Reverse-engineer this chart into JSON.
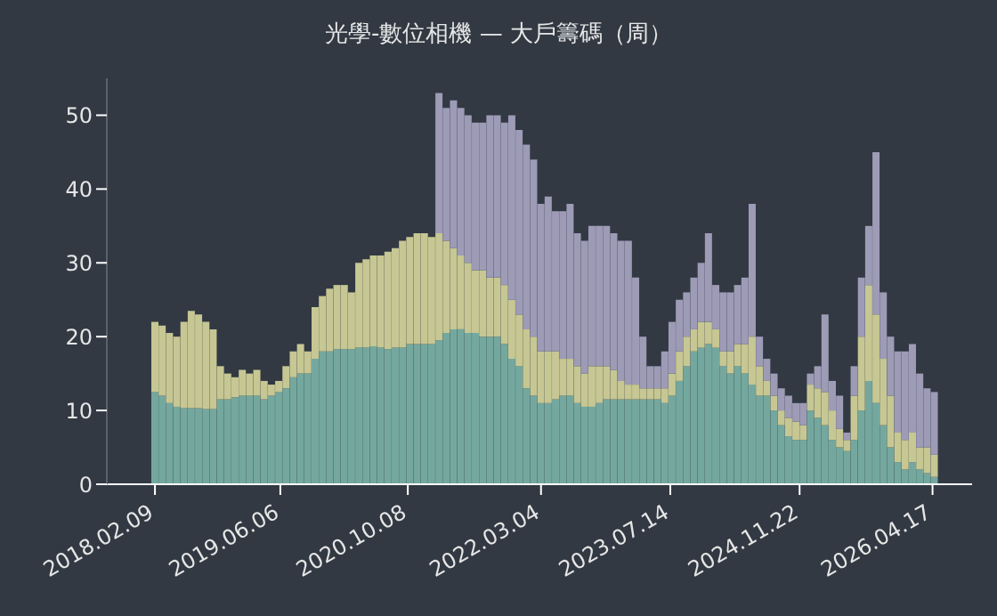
{
  "chart_data": {
    "type": "bar",
    "title": "光學-數位相機 — 大戶籌碼（周）",
    "stacked": true,
    "x": [
      "2018-02-09",
      "2018-03-09",
      "2018-04-06",
      "2018-05-04",
      "2018-06-01",
      "2018-06-29",
      "2018-07-27",
      "2018-08-24",
      "2018-09-21",
      "2018-10-19",
      "2018-11-16",
      "2018-12-14",
      "2019-01-11",
      "2019-02-08",
      "2019-03-08",
      "2019-04-05",
      "2019-05-03",
      "2019-05-31",
      "2019-06-28",
      "2019-07-26",
      "2019-08-23",
      "2019-09-20",
      "2019-10-18",
      "2019-11-15",
      "2019-12-13",
      "2020-01-10",
      "2020-02-07",
      "2020-03-06",
      "2020-04-03",
      "2020-05-01",
      "2020-05-29",
      "2020-06-26",
      "2020-07-24",
      "2020-08-21",
      "2020-09-18",
      "2020-10-16",
      "2020-11-13",
      "2020-12-11",
      "2021-01-08",
      "2021-02-05",
      "2021-03-05",
      "2021-04-02",
      "2021-04-30",
      "2021-05-28",
      "2021-06-25",
      "2021-07-23",
      "2021-08-20",
      "2021-09-17",
      "2021-10-15",
      "2021-11-12",
      "2021-12-10",
      "2022-01-07",
      "2022-02-04",
      "2022-03-04",
      "2022-04-01",
      "2022-04-29",
      "2022-05-27",
      "2022-06-24",
      "2022-07-22",
      "2022-08-19",
      "2022-09-16",
      "2022-10-14",
      "2022-11-11",
      "2022-12-09",
      "2023-01-06",
      "2023-02-03",
      "2023-03-03",
      "2023-03-31",
      "2023-04-28",
      "2023-05-26",
      "2023-06-23",
      "2023-07-21",
      "2023-08-18",
      "2023-09-15",
      "2023-10-13",
      "2023-11-10",
      "2023-12-08",
      "2024-01-05",
      "2024-02-02",
      "2024-03-01",
      "2024-03-29",
      "2024-04-26",
      "2024-05-24",
      "2024-06-21",
      "2024-07-19",
      "2024-08-16",
      "2024-09-13",
      "2024-10-11",
      "2024-11-08",
      "2024-12-06",
      "2025-01-03",
      "2025-01-31",
      "2025-02-28",
      "2025-03-28",
      "2025-04-25",
      "2025-05-23",
      "2025-06-20",
      "2025-07-18",
      "2025-08-15",
      "2025-09-12",
      "2025-10-10",
      "2025-11-07",
      "2025-12-05",
      "2026-01-02",
      "2026-01-30",
      "2026-02-27",
      "2026-03-27",
      "2026-04-24"
    ],
    "series": [
      {
        "color": "#74a89f",
        "values": [
          12.5,
          12,
          11,
          10.5,
          10.3,
          10.3,
          10.3,
          10.2,
          10.2,
          11.5,
          11.5,
          11.8,
          12,
          12,
          12,
          11.5,
          12,
          12.5,
          13,
          14.5,
          15,
          15,
          17,
          18,
          18,
          18.3,
          18.3,
          18.3,
          18.5,
          18.5,
          18.7,
          18.5,
          18.3,
          18.5,
          18.5,
          19,
          19,
          19,
          19,
          19.5,
          20.5,
          21,
          21,
          20.5,
          20.5,
          20,
          20,
          20,
          19,
          17,
          16,
          13,
          12,
          11,
          11,
          11.5,
          12,
          12,
          11,
          10.5,
          10.5,
          11,
          11.5,
          11.5,
          11.5,
          11.5,
          11.5,
          11.5,
          11.5,
          11.5,
          11,
          12,
          14,
          16,
          18,
          18.5,
          19,
          18.5,
          16,
          15,
          16,
          15,
          13.5,
          12,
          12,
          10,
          8,
          6.5,
          6,
          6,
          10,
          9,
          8,
          6,
          5,
          4.5,
          6,
          10,
          14,
          11,
          8,
          5,
          3,
          2,
          3,
          2,
          1.5,
          1
        ]
      },
      {
        "color": "#c6c793",
        "values": [
          9.5,
          9.5,
          9.5,
          9.5,
          11.7,
          13.2,
          12.7,
          11.8,
          10.8,
          4.5,
          3.5,
          2.7,
          3.5,
          3,
          3.5,
          2.5,
          1.5,
          1.5,
          3,
          3.5,
          4,
          3,
          7,
          7.5,
          8.5,
          8.7,
          8.7,
          7.7,
          11.5,
          12,
          12.3,
          12.5,
          13.2,
          13.5,
          14.5,
          14.5,
          15,
          15,
          14.5,
          14.5,
          12.5,
          11,
          10,
          9.5,
          8.5,
          9,
          8,
          8,
          8,
          8,
          7,
          8,
          8,
          7,
          7,
          6.5,
          5,
          5,
          5,
          4.5,
          5.5,
          5,
          4.5,
          4,
          2.5,
          2,
          2,
          1.5,
          1.5,
          1.5,
          2,
          3,
          4,
          4,
          3,
          3.5,
          3,
          2.5,
          2,
          3,
          3,
          4,
          6.5,
          4,
          2,
          2,
          2,
          2.5,
          2.5,
          2,
          3.5,
          4,
          4.5,
          4,
          2.5,
          1.5,
          6,
          10,
          13,
          12,
          9,
          7,
          4,
          4,
          4,
          3,
          3.5,
          3
        ]
      },
      {
        "color": "#9d9bb6",
        "values": [
          null,
          null,
          null,
          null,
          null,
          null,
          null,
          null,
          null,
          null,
          null,
          null,
          null,
          null,
          null,
          null,
          null,
          null,
          null,
          null,
          null,
          null,
          null,
          null,
          null,
          null,
          null,
          null,
          null,
          null,
          null,
          null,
          null,
          null,
          null,
          null,
          null,
          null,
          null,
          19,
          18,
          20,
          20,
          20,
          20,
          20,
          22,
          22,
          22,
          25,
          25,
          25,
          24,
          20,
          21,
          19,
          20,
          21,
          18,
          18,
          19,
          19,
          19,
          18.5,
          19,
          19.5,
          14.5,
          7,
          3,
          3,
          5,
          7,
          7,
          6,
          7,
          8,
          12,
          6,
          8,
          8,
          8,
          9,
          18,
          4,
          3,
          3,
          3,
          3,
          2.5,
          3,
          1.5,
          3,
          10.5,
          4,
          4.5,
          1,
          4,
          8,
          8,
          22,
          9,
          8,
          11,
          12,
          12,
          10,
          8,
          8.5
        ]
      }
    ],
    "xlim": [
      "2017-08-08",
      "2026-09-16"
    ],
    "xticks": [
      {
        "value": "2018-02-09",
        "label": "2018.02.09"
      },
      {
        "value": "2019-06-06",
        "label": "2019.06.06"
      },
      {
        "value": "2020-10-08",
        "label": "2020.10.08"
      },
      {
        "value": "2022-03-04",
        "label": "2022.03.04"
      },
      {
        "value": "2023-07-14",
        "label": "2023.07.14"
      },
      {
        "value": "2024-11-22",
        "label": "2024.11.22"
      },
      {
        "value": "2026-04-17",
        "label": "2026.04.17"
      }
    ],
    "ylim": [
      0,
      55
    ],
    "yticks": [
      0,
      10,
      20,
      30,
      40,
      50
    ]
  }
}
